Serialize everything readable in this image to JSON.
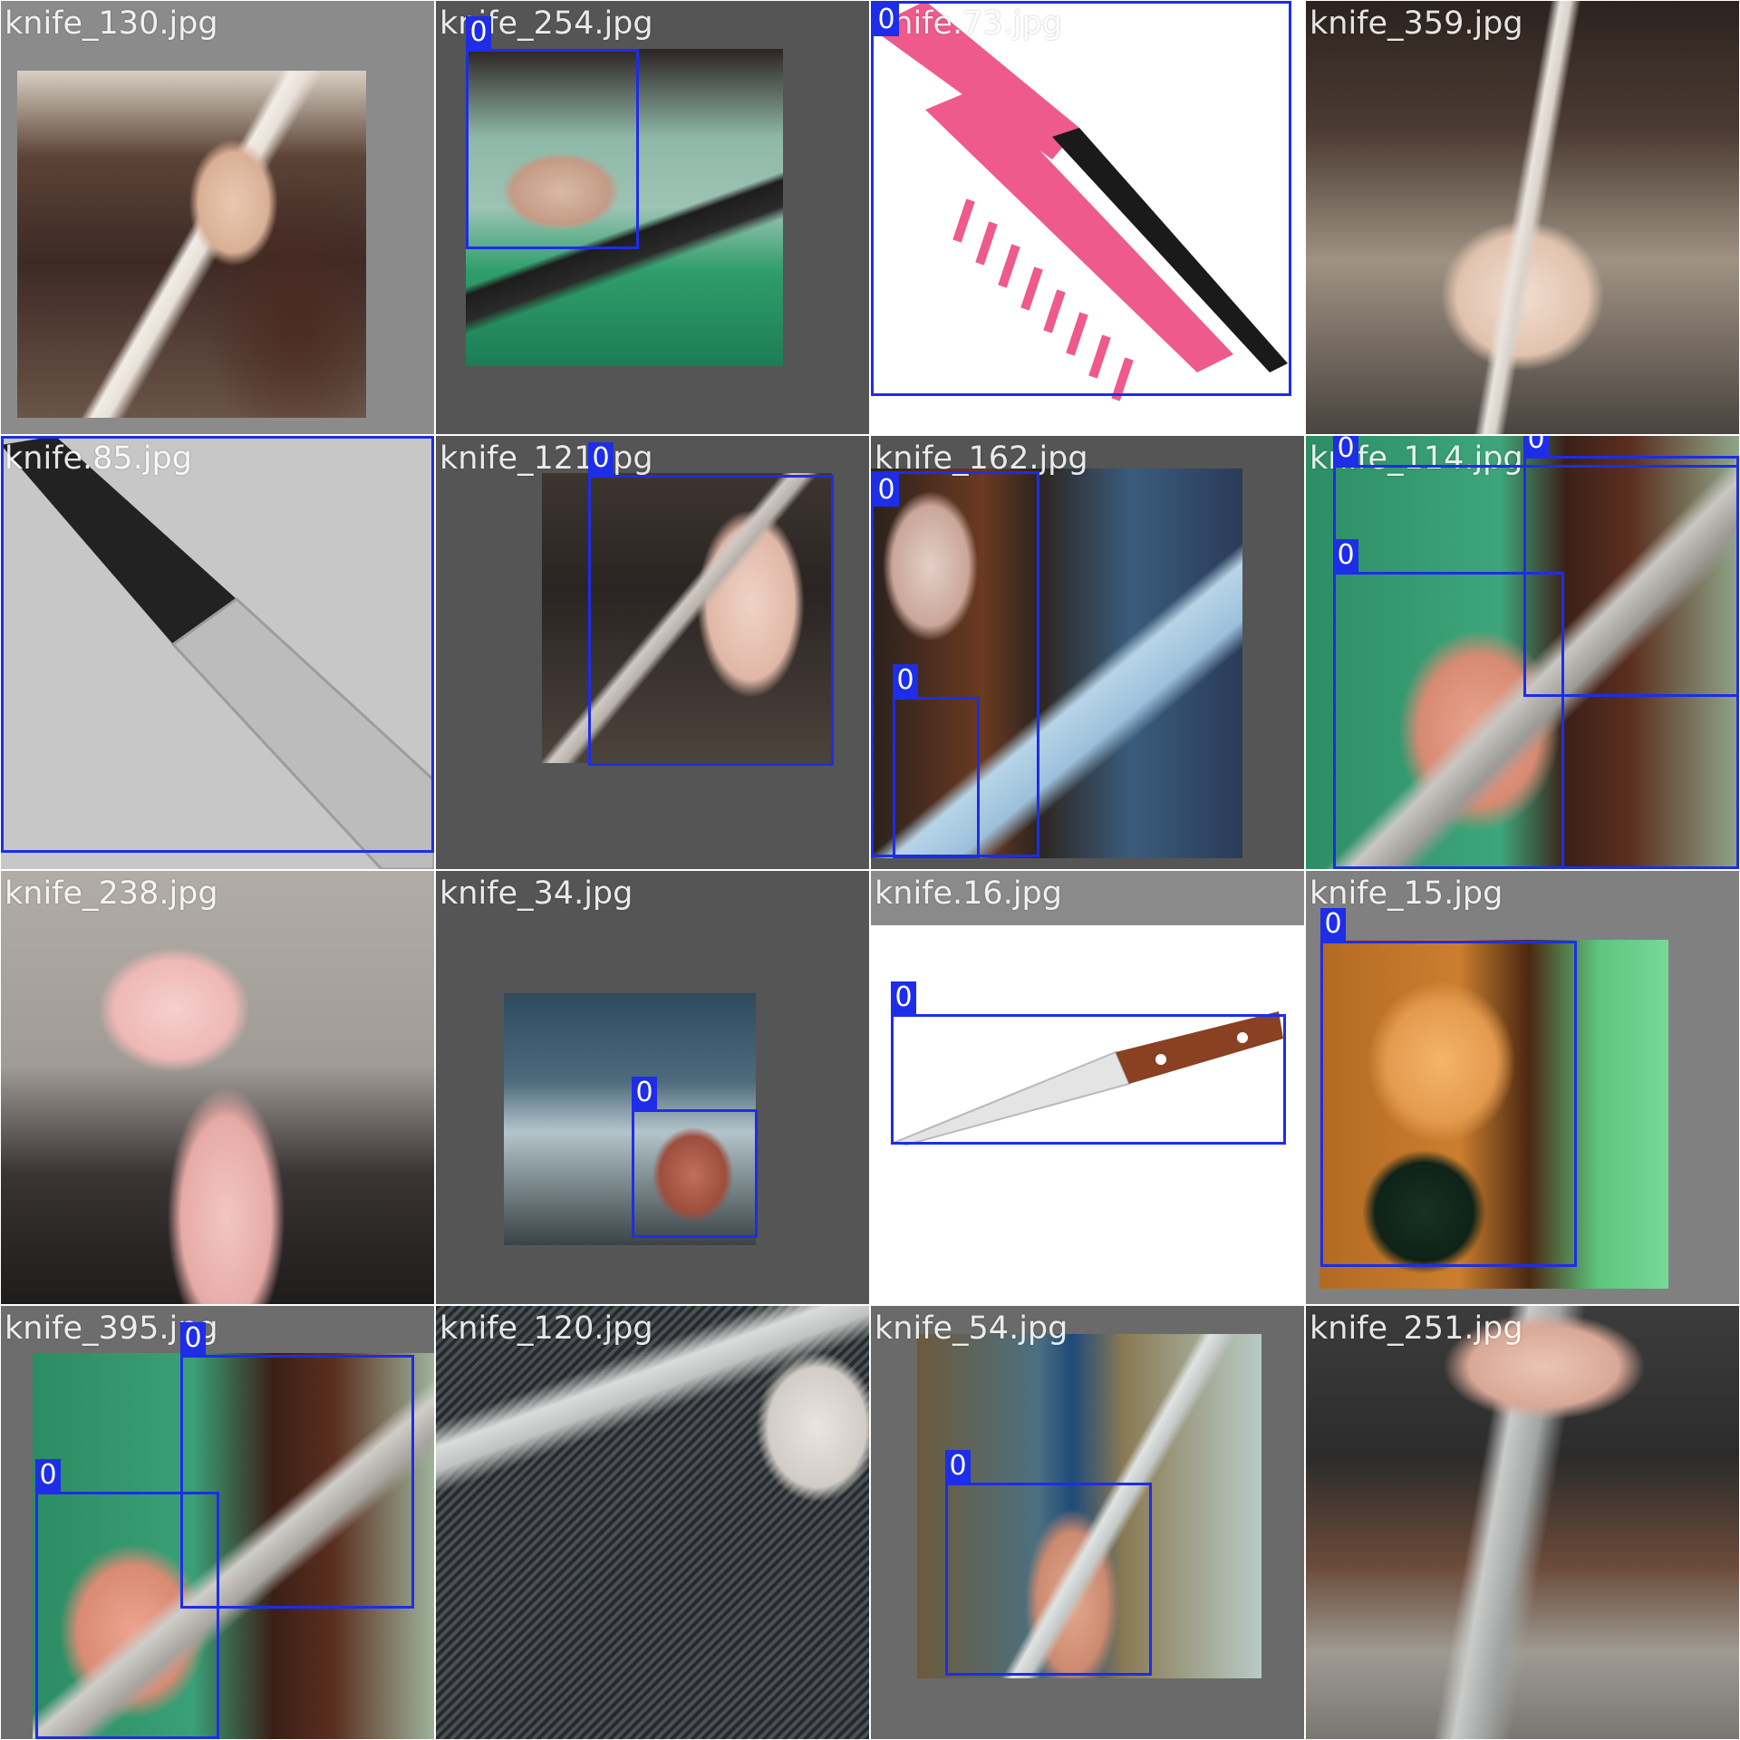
{
  "grid": {
    "rows": 4,
    "columns": 4,
    "tiles": [
      {
        "filename": "knife_130.jpg",
        "boxes": []
      },
      {
        "filename": "knife_254.jpg",
        "boxes": [
          {
            "class_id": "0"
          }
        ]
      },
      {
        "filename": "knife.73.jpg",
        "boxes": [
          {
            "class_id": "0"
          }
        ]
      },
      {
        "filename": "knife_359.jpg",
        "boxes": []
      },
      {
        "filename": "knife.85.jpg",
        "boxes": [
          {
            "class_id": "0"
          }
        ]
      },
      {
        "filename": "knife_121.jpg",
        "boxes": [
          {
            "class_id": "0"
          }
        ]
      },
      {
        "filename": "knife_162.jpg",
        "boxes": [
          {
            "class_id": "0"
          },
          {
            "class_id": "0"
          }
        ]
      },
      {
        "filename": "knife_114.jpg",
        "boxes": [
          {
            "class_id": "0"
          },
          {
            "class_id": "0"
          },
          {
            "class_id": "0"
          }
        ]
      },
      {
        "filename": "knife_238.jpg",
        "boxes": []
      },
      {
        "filename": "knife_34.jpg",
        "boxes": [
          {
            "class_id": "0"
          }
        ]
      },
      {
        "filename": "knife.16.jpg",
        "boxes": [
          {
            "class_id": "0"
          }
        ]
      },
      {
        "filename": "knife_15.jpg",
        "boxes": [
          {
            "class_id": "0"
          }
        ]
      },
      {
        "filename": "knife_395.jpg",
        "boxes": [
          {
            "class_id": "0"
          },
          {
            "class_id": "0"
          }
        ]
      },
      {
        "filename": "knife_120.jpg",
        "boxes": []
      },
      {
        "filename": "knife_54.jpg",
        "boxes": [
          {
            "class_id": "0"
          }
        ]
      },
      {
        "filename": "knife_251.jpg",
        "boxes": []
      }
    ]
  },
  "colors": {
    "box_border": "#1d2de8",
    "label_background": "#1d2de8",
    "label_text": "#ffffff",
    "filename_text": "#ffffff"
  }
}
